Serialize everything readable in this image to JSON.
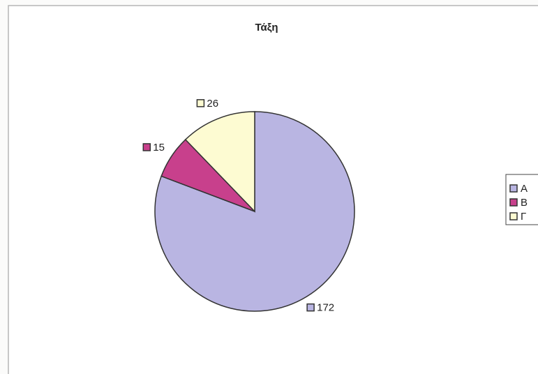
{
  "chart_data": {
    "type": "pie",
    "title": "Τάξη",
    "categories": [
      "A",
      "B",
      "Γ"
    ],
    "values": [
      172,
      15,
      26
    ],
    "colors": [
      "#b9b5e2",
      "#c8408c",
      "#fdfbd2"
    ],
    "legend": "right"
  }
}
